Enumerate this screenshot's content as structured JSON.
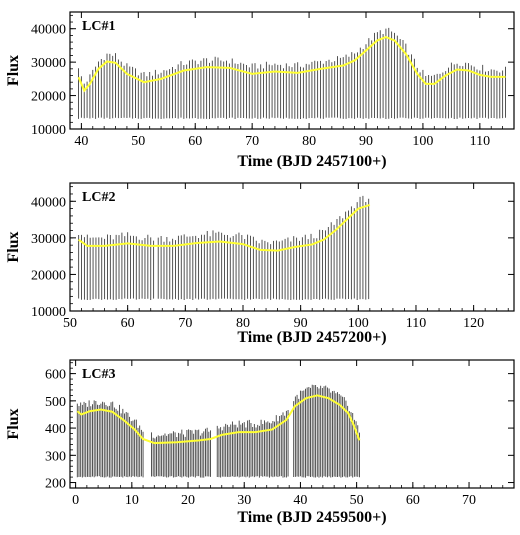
{
  "chart_data": [
    {
      "type": "line",
      "panel_label": "LC#1",
      "xlabel": "Time (BJD 2457100+)",
      "ylabel": "Flux",
      "xlim": [
        38,
        116
      ],
      "ylim": [
        10000,
        45000
      ],
      "xticks": [
        40,
        50,
        60,
        70,
        80,
        90,
        100,
        110
      ],
      "yticks": [
        10000,
        20000,
        30000,
        40000
      ],
      "xticklabels": [
        "40",
        "50",
        "60",
        "70",
        "80",
        "90",
        "100",
        "110"
      ],
      "yticklabels": [
        "10000",
        "20000",
        "30000",
        "40000"
      ],
      "grid": false,
      "colors": {
        "scatter": "#000000",
        "smooth": "#ffff33"
      },
      "data_range": [
        39.5,
        114.5
      ],
      "gaps": [],
      "cadence": 0.5,
      "upper_offset": 3200,
      "lower_floor": 13000,
      "smooth_curve": {
        "x": [
          39.5,
          40.5,
          41.5,
          43,
          44.5,
          46,
          48,
          51,
          54,
          58,
          62,
          66,
          70,
          74,
          78,
          82,
          86,
          88,
          90,
          92,
          93.5,
          95,
          97,
          99,
          100.5,
          102,
          104,
          106,
          108,
          110,
          112,
          114.5
        ],
        "y": [
          25500,
          21500,
          23500,
          28000,
          30200,
          29800,
          26500,
          24000,
          25000,
          27500,
          28500,
          28300,
          26500,
          27200,
          26800,
          28000,
          29000,
          30500,
          33500,
          36500,
          37500,
          36500,
          32500,
          26500,
          23500,
          23500,
          26000,
          27800,
          27500,
          26200,
          25600,
          25600
        ]
      }
    },
    {
      "type": "line",
      "panel_label": "LC#2",
      "xlabel": "Time (BJD 2457200+)",
      "ylabel": "Flux",
      "xlim": [
        50,
        127
      ],
      "ylim": [
        10000,
        45000
      ],
      "xticks": [
        50,
        60,
        70,
        80,
        90,
        100,
        110,
        120
      ],
      "yticks": [
        10000,
        20000,
        30000,
        40000
      ],
      "xticklabels": [
        "50",
        "60",
        "70",
        "80",
        "90",
        "100",
        "110",
        "120"
      ],
      "yticklabels": [
        "10000",
        "20000",
        "30000",
        "40000"
      ],
      "grid": false,
      "colors": {
        "scatter": "#000000",
        "smooth": "#ffff33"
      },
      "data_range": [
        51.5,
        102
      ],
      "gaps": [
        [
          64.8,
          65.3
        ]
      ],
      "cadence": 0.5,
      "upper_offset": 3200,
      "lower_floor": 13000,
      "smooth_curve": {
        "x": [
          51.5,
          53,
          56,
          60,
          64,
          68,
          72,
          76,
          80,
          83,
          86,
          89,
          92,
          94,
          96,
          98,
          100,
          102
        ],
        "y": [
          29500,
          27800,
          27800,
          28500,
          27800,
          27800,
          28600,
          29000,
          28300,
          26700,
          26500,
          27500,
          28200,
          29500,
          32000,
          35000,
          38000,
          39000
        ]
      }
    },
    {
      "type": "line",
      "panel_label": "LC#3",
      "xlabel": "Time (BJD 2459500+)",
      "ylabel": "Flux",
      "xlim": [
        -1,
        78
      ],
      "ylim": [
        180,
        650
      ],
      "xticks": [
        0,
        10,
        20,
        30,
        40,
        50,
        60,
        70
      ],
      "yticks": [
        200,
        300,
        400,
        500,
        600
      ],
      "xticklabels": [
        "0",
        "10",
        "20",
        "30",
        "40",
        "50",
        "60",
        "70"
      ],
      "yticklabels": [
        "200",
        "300",
        "400",
        "500",
        "600"
      ],
      "grid": false,
      "colors": {
        "scatter": "#000000",
        "smooth": "#ffff33"
      },
      "data_range": [
        0.3,
        50.7
      ],
      "gaps": [
        [
          12.3,
          13.5
        ],
        [
          24.3,
          25.2
        ],
        [
          37.8,
          38.8
        ]
      ],
      "cadence": 0.3,
      "upper_offset": 45,
      "lower_floor": 218,
      "smooth_curve": {
        "x": [
          0.3,
          1,
          2.5,
          4.5,
          6.5,
          8.5,
          10.5,
          12,
          14,
          18,
          22,
          24,
          26,
          29,
          32,
          35,
          37.5,
          39,
          41,
          43,
          45,
          47,
          48.5,
          49.5,
          50.5
        ],
        "y": [
          462,
          450,
          462,
          468,
          460,
          430,
          395,
          360,
          345,
          348,
          355,
          360,
          375,
          385,
          385,
          395,
          430,
          480,
          510,
          520,
          510,
          485,
          455,
          410,
          355
        ]
      }
    }
  ]
}
